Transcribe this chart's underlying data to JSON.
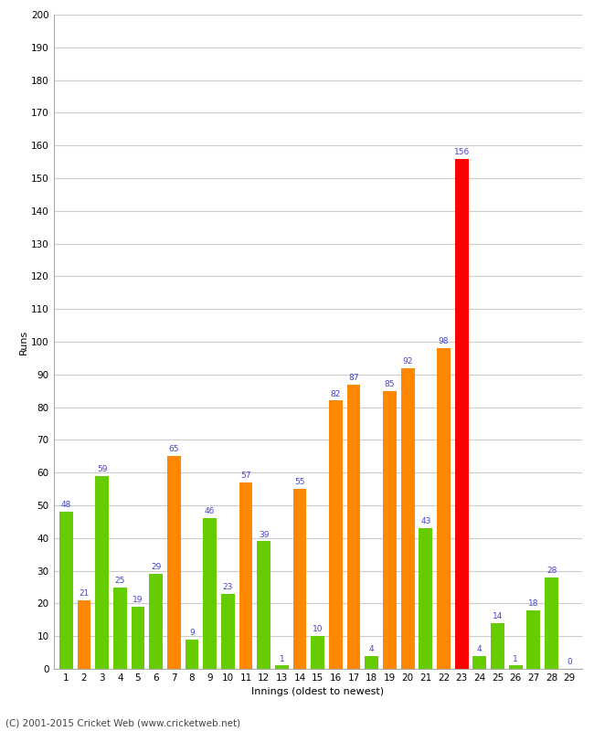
{
  "title": "",
  "xlabel": "Innings (oldest to newest)",
  "ylabel": "Runs",
  "copyright": "(C) 2001-2015 Cricket Web (www.cricketweb.net)",
  "ylim": [
    0,
    200
  ],
  "yticks": [
    0,
    10,
    20,
    30,
    40,
    50,
    60,
    70,
    80,
    90,
    100,
    110,
    120,
    130,
    140,
    150,
    160,
    170,
    180,
    190,
    200
  ],
  "innings": [
    1,
    2,
    3,
    4,
    5,
    6,
    7,
    8,
    9,
    10,
    11,
    12,
    13,
    14,
    15,
    16,
    17,
    18,
    19,
    20,
    21,
    22,
    23,
    24,
    25,
    26,
    27,
    28,
    29
  ],
  "values": [
    48,
    21,
    59,
    25,
    19,
    29,
    65,
    9,
    46,
    23,
    57,
    39,
    1,
    55,
    10,
    82,
    87,
    4,
    85,
    92,
    43,
    98,
    156,
    4,
    14,
    1,
    18,
    28,
    0
  ],
  "colors": [
    "#66cc00",
    "#ff8800",
    "#66cc00",
    "#66cc00",
    "#66cc00",
    "#66cc00",
    "#ff8800",
    "#66cc00",
    "#66cc00",
    "#66cc00",
    "#ff8800",
    "#66cc00",
    "#66cc00",
    "#ff8800",
    "#66cc00",
    "#ff8800",
    "#ff8800",
    "#66cc00",
    "#ff8800",
    "#ff8800",
    "#66cc00",
    "#ff8800",
    "#ff0000",
    "#66cc00",
    "#66cc00",
    "#66cc00",
    "#66cc00",
    "#66cc00",
    "#66cc00"
  ],
  "label_color": "#4444cc",
  "label_fontsize": 6.5,
  "bar_width": 0.75,
  "background_color": "#ffffff",
  "grid_color": "#cccccc",
  "axis_label_fontsize": 8,
  "tick_fontsize": 7.5,
  "copyright_fontsize": 7.5,
  "spine_color": "#aaaaaa"
}
